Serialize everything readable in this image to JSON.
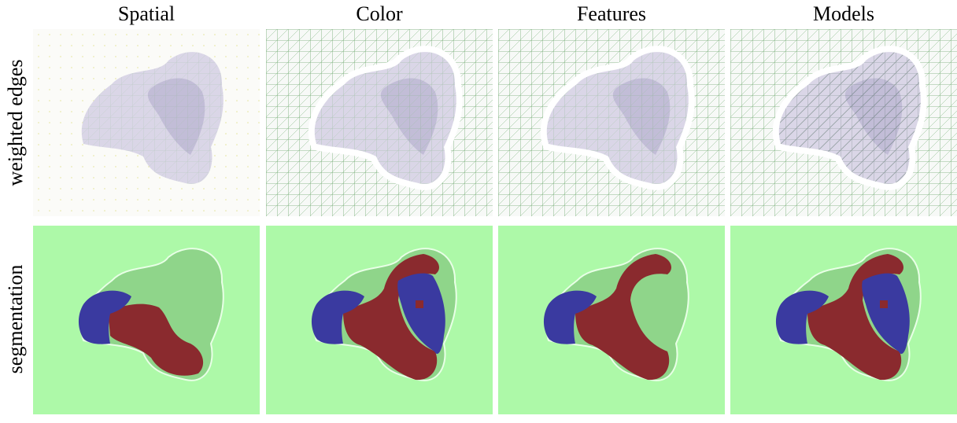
{
  "columns": [
    "Spatial",
    "Color",
    "Features",
    "Models"
  ],
  "rows": [
    "weighted edges",
    "segmentation"
  ]
}
